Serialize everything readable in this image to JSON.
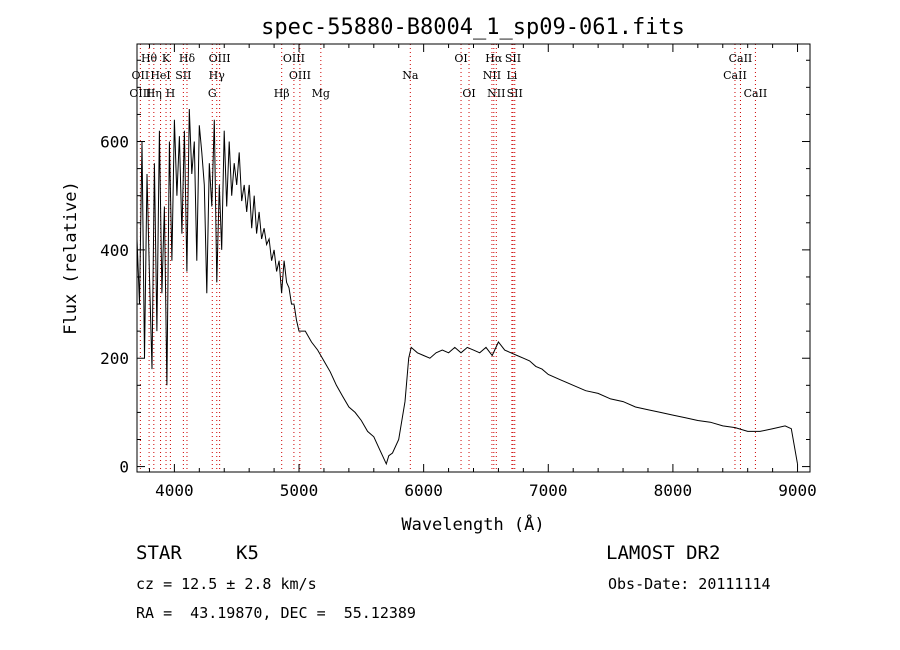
{
  "chart_data": {
    "type": "line",
    "title": "spec-55880-B8004_1_sp09-061.fits",
    "xlabel": "Wavelength (Å)",
    "ylabel": "Flux (relative)",
    "xlim": [
      3700,
      9100
    ],
    "ylim": [
      -10,
      780
    ],
    "xticks": [
      4000,
      5000,
      6000,
      7000,
      8000,
      9000
    ],
    "yticks": [
      0,
      200,
      400,
      600
    ],
    "grid": false,
    "line_color": "#000000",
    "marker_color": "#cc0000",
    "series": [
      {
        "x": [
          3700,
          3720,
          3740,
          3760,
          3780,
          3800,
          3820,
          3840,
          3860,
          3880,
          3900,
          3920,
          3940,
          3960,
          3980,
          4000,
          4020,
          4040,
          4060,
          4080,
          4100,
          4120,
          4140,
          4160,
          4180,
          4200,
          4220,
          4240,
          4260,
          4280,
          4300,
          4320,
          4340,
          4360,
          4380,
          4400,
          4420,
          4440,
          4460,
          4480,
          4500,
          4520,
          4540,
          4560,
          4580,
          4600,
          4620,
          4640,
          4660,
          4680,
          4700,
          4720,
          4740,
          4760,
          4780,
          4800,
          4820,
          4840,
          4860,
          4880,
          4900,
          4920,
          4940,
          4960,
          4980,
          5000,
          5050,
          5100,
          5150,
          5200,
          5250,
          5300,
          5350,
          5400,
          5450,
          5500,
          5550,
          5600,
          5650,
          5700,
          5720,
          5750,
          5800,
          5850,
          5880,
          5900,
          5950,
          6000,
          6050,
          6100,
          6150,
          6200,
          6250,
          6300,
          6350,
          6400,
          6450,
          6500,
          6550,
          6600,
          6650,
          6700,
          6750,
          6800,
          6850,
          6900,
          6950,
          7000,
          7100,
          7200,
          7300,
          7400,
          7500,
          7600,
          7700,
          7800,
          7900,
          8000,
          8100,
          8200,
          8300,
          8400,
          8500,
          8600,
          8700,
          8800,
          8900,
          8950,
          9000
        ],
        "y": [
          420,
          300,
          600,
          200,
          540,
          350,
          180,
          560,
          250,
          620,
          320,
          480,
          150,
          600,
          380,
          640,
          500,
          610,
          430,
          620,
          360,
          660,
          540,
          600,
          380,
          630,
          580,
          520,
          320,
          560,
          480,
          640,
          340,
          520,
          400,
          620,
          480,
          600,
          500,
          560,
          520,
          580,
          490,
          520,
          470,
          520,
          440,
          500,
          430,
          470,
          420,
          440,
          410,
          420,
          380,
          400,
          360,
          380,
          320,
          380,
          340,
          330,
          300,
          300,
          270,
          250,
          250,
          230,
          215,
          195,
          175,
          150,
          130,
          110,
          100,
          85,
          65,
          55,
          30,
          5,
          20,
          25,
          50,
          120,
          200,
          220,
          210,
          205,
          200,
          210,
          215,
          210,
          220,
          210,
          220,
          215,
          210,
          220,
          205,
          230,
          215,
          210,
          205,
          200,
          195,
          185,
          180,
          170,
          160,
          150,
          140,
          135,
          125,
          120,
          110,
          105,
          100,
          95,
          90,
          85,
          82,
          75,
          72,
          65,
          65,
          70,
          75,
          70,
          5
        ]
      }
    ],
    "line_markers": {
      "labels_row1": [
        [
          "Hθ",
          3797
        ],
        [
          "K",
          3933
        ],
        [
          "Hδ",
          4101
        ],
        [
          "OIII",
          4363
        ],
        [
          "OIII",
          4959
        ],
        [
          "OI",
          6300
        ],
        [
          "Hα",
          6563
        ],
        [
          "SII",
          6717
        ],
        [
          "CaII",
          8542
        ]
      ],
      "labels_row2": [
        [
          "OII",
          3727
        ],
        [
          "HeI",
          3889
        ],
        [
          "SII",
          4072
        ],
        [
          "Hγ",
          4340
        ],
        [
          "OIII",
          5007
        ],
        [
          "Na",
          5893
        ],
        [
          "NII",
          6548
        ],
        [
          "Li",
          6708
        ],
        [
          "CaII",
          8498
        ]
      ],
      "labels_row3": [
        [
          "OIII",
          3727
        ],
        [
          "Hη",
          3835
        ],
        [
          "H",
          3968
        ],
        [
          "G",
          4304
        ],
        [
          "Hβ",
          4861
        ],
        [
          "Mg",
          5175
        ],
        [
          "OI",
          6364
        ],
        [
          "NII",
          6583
        ],
        [
          "SII",
          6731
        ],
        [
          "CaII",
          8662
        ]
      ]
    }
  },
  "info": {
    "object_type": "STAR",
    "subclass": "K5",
    "survey": "LAMOST DR2",
    "cz": "cz = 12.5 ± 2.8 km/s",
    "obs_date": "Obs-Date: 20111114",
    "coords": "RA =  43.19870, DEC =  55.12389"
  }
}
